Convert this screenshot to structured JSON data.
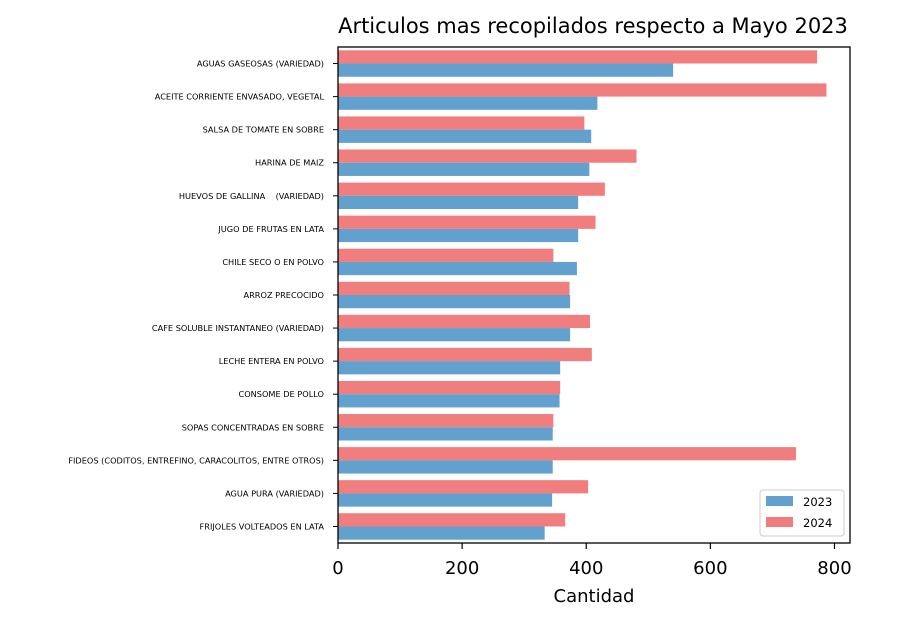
{
  "chart_data": {
    "type": "bar",
    "orientation": "horizontal",
    "title": "Articulos mas recopilados respecto a Mayo 2023",
    "xlabel": "Cantidad",
    "ylabel": "",
    "xlim": [
      0,
      825
    ],
    "xticks": [
      0,
      200,
      400,
      600,
      800
    ],
    "grid": false,
    "legend_position": "bottom-right",
    "categories": [
      "AGUAS GASEOSAS (VARIEDAD)",
      "ACEITE CORRIENTE ENVASADO, VEGETAL",
      "SALSA DE TOMATE EN SOBRE",
      "HARINA DE MAIZ",
      "HUEVOS DE GALLINA    (VARIEDAD)",
      "JUGO DE FRUTAS EN LATA",
      "CHILE SECO O EN POLVO",
      "ARROZ PRECOCIDO",
      "CAFE SOLUBLE INSTANTANEO (VARIEDAD)",
      "LECHE ENTERA EN POLVO",
      "CONSOME DE POLLO",
      "SOPAS CONCENTRADAS EN SOBRE",
      "FIDEOS (CODITOS, ENTREFINO, CARACOLITOS, ENTRE OTROS)",
      "AGUA PURA (VARIEDAD)",
      "FRIJOLES VOLTEADOS EN LATA"
    ],
    "series": [
      {
        "name": "2023",
        "color": "#62a0cd",
        "values": [
          540,
          418,
          408,
          405,
          387,
          387,
          385,
          374,
          374,
          358,
          357,
          346,
          346,
          345,
          333
        ]
      },
      {
        "name": "2024",
        "color": "#f07e7e",
        "values": [
          772,
          787,
          397,
          481,
          430,
          415,
          347,
          373,
          406,
          409,
          358,
          347,
          738,
          403,
          366
        ]
      }
    ]
  }
}
